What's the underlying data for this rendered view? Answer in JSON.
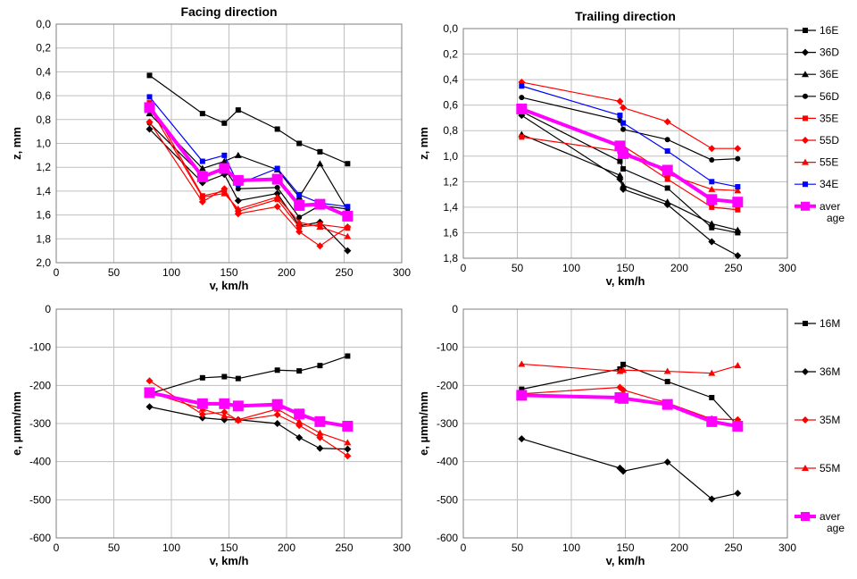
{
  "chart_data": [
    {
      "type": "line",
      "title": "Facing direction",
      "xlabel": "v, km/h",
      "ylabel": "z, mm",
      "xlim": [
        0,
        300
      ],
      "ylim": [
        0.0,
        2.0
      ],
      "y_reversed": true,
      "xticks": [
        "0",
        "50",
        "100",
        "150",
        "200",
        "250",
        "300"
      ],
      "yticks": [
        "0,0",
        "0,2",
        "0,4",
        "0,6",
        "0,8",
        "1,0",
        "1,2",
        "1,4",
        "1,6",
        "1,8",
        "2,0"
      ],
      "grid": true,
      "series": [
        {
          "name": "16E",
          "color": "#000000",
          "marker": "square",
          "x": [
            81,
            127,
            146,
            158,
            192,
            211,
            229,
            253
          ],
          "y": [
            0.43,
            0.75,
            0.83,
            0.72,
            0.88,
            1.0,
            1.07,
            1.17
          ]
        },
        {
          "name": "36D",
          "color": "#000000",
          "marker": "diamond",
          "x": [
            81,
            127,
            146,
            158,
            192,
            211,
            229,
            253
          ],
          "y": [
            0.88,
            1.33,
            1.26,
            1.48,
            1.42,
            1.69,
            1.66,
            1.9
          ]
        },
        {
          "name": "36E",
          "color": "#000000",
          "marker": "triangle",
          "x": [
            81,
            127,
            146,
            158,
            192,
            211,
            229,
            253
          ],
          "y": [
            0.75,
            1.21,
            1.15,
            1.1,
            1.22,
            1.45,
            1.17,
            1.56
          ]
        },
        {
          "name": "56D",
          "color": "#000000",
          "marker": "circle",
          "x": [
            81,
            127,
            146,
            158,
            192,
            211,
            229,
            253
          ],
          "y": [
            0.83,
            1.27,
            1.21,
            1.38,
            1.37,
            1.62,
            1.52,
            1.55
          ]
        },
        {
          "name": "35E",
          "color": "#ff0000",
          "marker": "square",
          "x": [
            81,
            127,
            146,
            158,
            192,
            211,
            229,
            253
          ],
          "y": [
            0.66,
            1.44,
            1.4,
            1.57,
            1.47,
            1.7,
            1.68,
            1.71
          ]
        },
        {
          "name": "55D",
          "color": "#ff0000",
          "marker": "diamond",
          "x": [
            81,
            127,
            146,
            158,
            192,
            211,
            229,
            253
          ],
          "y": [
            0.82,
            1.49,
            1.38,
            1.59,
            1.53,
            1.74,
            1.86,
            1.7
          ]
        },
        {
          "name": "55E",
          "color": "#ff0000",
          "marker": "triangle",
          "x": [
            81,
            127,
            146,
            158,
            192,
            211,
            229,
            253
          ],
          "y": [
            0.7,
            1.45,
            1.42,
            1.55,
            1.45,
            1.66,
            1.7,
            1.78
          ]
        },
        {
          "name": "34E",
          "color": "#0000ff",
          "marker": "square",
          "x": [
            81,
            127,
            146,
            158,
            192,
            211,
            229,
            253
          ],
          "y": [
            0.61,
            1.15,
            1.1,
            1.34,
            1.21,
            1.43,
            1.5,
            1.53
          ]
        },
        {
          "name": "aver age",
          "color": "#ff00ff",
          "marker": "square",
          "thick": true,
          "x": [
            81,
            127,
            146,
            158,
            192,
            211,
            229,
            253
          ],
          "y": [
            0.7,
            1.28,
            1.21,
            1.31,
            1.3,
            1.52,
            1.51,
            1.61
          ]
        }
      ]
    },
    {
      "type": "line",
      "title": "Trailing direction",
      "xlabel": "v, km/h",
      "ylabel": "z, mm",
      "xlim": [
        0,
        300
      ],
      "ylim": [
        0.0,
        1.8
      ],
      "y_reversed": true,
      "xticks": [
        "0",
        "50",
        "100",
        "150",
        "200",
        "250",
        "300"
      ],
      "yticks": [
        "0,0",
        "0,2",
        "0,4",
        "0,6",
        "0,8",
        "1,0",
        "1,2",
        "1,4",
        "1,6",
        "1,8"
      ],
      "grid": true,
      "legend": "right",
      "series": [
        {
          "name": "16E",
          "color": "#000000",
          "marker": "square",
          "x": [
            54,
            145,
            148,
            189,
            230,
            254
          ],
          "y": [
            0.65,
            1.04,
            1.1,
            1.25,
            1.56,
            1.6
          ]
        },
        {
          "name": "36D",
          "color": "#000000",
          "marker": "diamond",
          "x": [
            54,
            145,
            148,
            189,
            230,
            254
          ],
          "y": [
            0.68,
            1.18,
            1.26,
            1.38,
            1.67,
            1.78
          ]
        },
        {
          "name": "36E",
          "color": "#000000",
          "marker": "triangle",
          "x": [
            54,
            145,
            148,
            189,
            230,
            254
          ],
          "y": [
            0.83,
            1.15,
            1.23,
            1.36,
            1.53,
            1.58
          ]
        },
        {
          "name": "56D",
          "color": "#000000",
          "marker": "circle",
          "x": [
            54,
            145,
            148,
            189,
            230,
            254
          ],
          "y": [
            0.54,
            0.72,
            0.79,
            0.87,
            1.03,
            1.02
          ]
        },
        {
          "name": "35E",
          "color": "#ff0000",
          "marker": "square",
          "x": [
            54,
            145,
            148,
            189,
            230,
            254
          ],
          "y": [
            0.85,
            0.96,
            0.95,
            1.18,
            1.4,
            1.42
          ]
        },
        {
          "name": "55D",
          "color": "#ff0000",
          "marker": "diamond",
          "x": [
            54,
            145,
            148,
            189,
            230,
            254
          ],
          "y": [
            0.42,
            0.57,
            0.62,
            0.73,
            0.94,
            0.94
          ]
        },
        {
          "name": "55E",
          "color": "#ff0000",
          "marker": "triangle",
          "x": [
            54,
            145,
            148,
            189,
            230,
            254
          ],
          "y": [
            0.62,
            0.92,
            0.92,
            1.14,
            1.26,
            1.27
          ]
        },
        {
          "name": "34E",
          "color": "#0000ff",
          "marker": "square",
          "x": [
            54,
            145,
            148,
            189,
            230,
            254
          ],
          "y": [
            0.45,
            0.68,
            0.74,
            0.96,
            1.2,
            1.24
          ]
        },
        {
          "name": "aver age",
          "color": "#ff00ff",
          "marker": "square",
          "thick": true,
          "x": [
            54,
            145,
            148,
            189,
            230,
            254
          ],
          "y": [
            0.63,
            0.92,
            0.98,
            1.11,
            1.34,
            1.36
          ]
        }
      ]
    },
    {
      "type": "line",
      "title": "",
      "xlabel": "v, km/h",
      "ylabel": "e, µmm/mm",
      "xlim": [
        0,
        300
      ],
      "ylim": [
        -600,
        0
      ],
      "xticks": [
        "0",
        "50",
        "100",
        "150",
        "200",
        "250",
        "300"
      ],
      "yticks": [
        "0",
        "-100",
        "-200",
        "-300",
        "-400",
        "-500",
        "-600"
      ],
      "grid": true,
      "series": [
        {
          "name": "16M",
          "color": "#000000",
          "marker": "square",
          "x": [
            81,
            127,
            146,
            158,
            192,
            211,
            229,
            253
          ],
          "y": [
            -222,
            -180,
            -177,
            -182,
            -160,
            -162,
            -148,
            -123
          ]
        },
        {
          "name": "36M",
          "color": "#000000",
          "marker": "diamond",
          "x": [
            81,
            127,
            146,
            158,
            192,
            211,
            229,
            253
          ],
          "y": [
            -256,
            -285,
            -290,
            -290,
            -300,
            -337,
            -365,
            -367
          ]
        },
        {
          "name": "35M",
          "color": "#ff0000",
          "marker": "diamond",
          "x": [
            81,
            127,
            146,
            158,
            192,
            211,
            229,
            253
          ],
          "y": [
            -188,
            -276,
            -270,
            -292,
            -277,
            -305,
            -337,
            -385
          ]
        },
        {
          "name": "55M",
          "color": "#ff0000",
          "marker": "triangle",
          "x": [
            81,
            127,
            146,
            158,
            192,
            211,
            229,
            253
          ],
          "y": [
            -218,
            -262,
            -280,
            -290,
            -262,
            -295,
            -325,
            -350
          ]
        },
        {
          "name": "aver age",
          "color": "#ff00ff",
          "marker": "square",
          "thick": true,
          "x": [
            81,
            127,
            146,
            158,
            192,
            211,
            229,
            253
          ],
          "y": [
            -219,
            -248,
            -248,
            -254,
            -250,
            -275,
            -295,
            -307
          ]
        }
      ]
    },
    {
      "type": "line",
      "title": "",
      "xlabel": "v, km/h",
      "ylabel": "e, µmm/mm",
      "xlim": [
        0,
        300
      ],
      "ylim": [
        -600,
        0
      ],
      "xticks": [
        "0",
        "50",
        "100",
        "150",
        "200",
        "250",
        "300"
      ],
      "yticks": [
        "0",
        "-100",
        "-200",
        "-300",
        "-400",
        "-500",
        "-600"
      ],
      "grid": true,
      "legend": "right",
      "series": [
        {
          "name": "16M",
          "color": "#000000",
          "marker": "square",
          "x": [
            54,
            145,
            148,
            189,
            230,
            254
          ],
          "y": [
            -210,
            -157,
            -145,
            -190,
            -232,
            -305
          ]
        },
        {
          "name": "36M",
          "color": "#000000",
          "marker": "diamond",
          "x": [
            54,
            145,
            148,
            189,
            230,
            254
          ],
          "y": [
            -340,
            -417,
            -425,
            -401,
            -498,
            -483
          ]
        },
        {
          "name": "35M",
          "color": "#ff0000",
          "marker": "diamond",
          "x": [
            54,
            145,
            148,
            189,
            230,
            254
          ],
          "y": [
            -222,
            -205,
            -212,
            -246,
            -288,
            -290
          ]
        },
        {
          "name": "55M",
          "color": "#ff0000",
          "marker": "triangle",
          "x": [
            54,
            145,
            148,
            189,
            230,
            254
          ],
          "y": [
            -144,
            -163,
            -160,
            -163,
            -168,
            -148
          ]
        },
        {
          "name": "aver age",
          "color": "#ff00ff",
          "marker": "square",
          "thick": true,
          "x": [
            54,
            145,
            148,
            189,
            230,
            254
          ],
          "y": [
            -226,
            -232,
            -234,
            -250,
            -295,
            -307
          ]
        }
      ]
    }
  ]
}
